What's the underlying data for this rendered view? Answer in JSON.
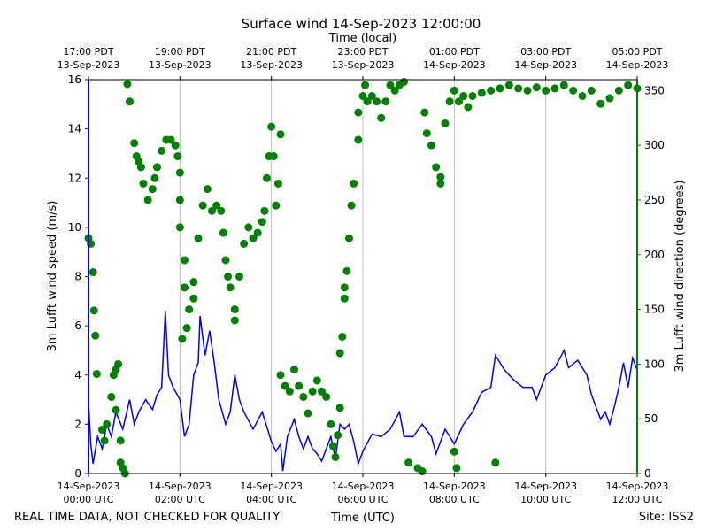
{
  "chart_data": {
    "type": "line",
    "title": "Surface wind 14-Sep-2023 12:00:00",
    "x2label": "Time (local)",
    "xlabel": "Time (UTC)",
    "ylabel": "3m Lufft wind speed (m/s)",
    "y2label": "3m Lufft wind direction (degrees)",
    "footer_left": "REAL TIME DATA, NOT CHECKED FOR QUALITY",
    "footer_right": "Site: ISS2",
    "grid": "x",
    "xlim": [
      0,
      12
    ],
    "xticks": [
      {
        "value": 0,
        "label": "14-Sep-2023\n00:00 UTC"
      },
      {
        "value": 2,
        "label": "14-Sep-2023\n02:00 UTC"
      },
      {
        "value": 4,
        "label": "14-Sep-2023\n04:00 UTC"
      },
      {
        "value": 6,
        "label": "14-Sep-2023\n06:00 UTC"
      },
      {
        "value": 8,
        "label": "14-Sep-2023\n08:00 UTC"
      },
      {
        "value": 10,
        "label": "14-Sep-2023\n10:00 UTC"
      },
      {
        "value": 12,
        "label": "14-Sep-2023\n12:00 UTC"
      }
    ],
    "x2ticks": [
      {
        "value": 0,
        "label": "17:00 PDT\n13-Sep-2023"
      },
      {
        "value": 2,
        "label": "19:00 PDT\n13-Sep-2023"
      },
      {
        "value": 4,
        "label": "21:00 PDT\n13-Sep-2023"
      },
      {
        "value": 6,
        "label": "23:00 PDT\n13-Sep-2023"
      },
      {
        "value": 8,
        "label": "01:00 PDT\n14-Sep-2023"
      },
      {
        "value": 10,
        "label": "03:00 PDT\n14-Sep-2023"
      },
      {
        "value": 12,
        "label": "05:00 PDT\n14-Sep-2023"
      }
    ],
    "ylim": [
      0,
      16
    ],
    "yticks": [
      0,
      2,
      4,
      6,
      8,
      10,
      12,
      14,
      16
    ],
    "y2lim": [
      0,
      360
    ],
    "y2ticks": [
      0,
      50,
      100,
      150,
      200,
      250,
      300,
      350
    ],
    "ycolor": "#0000ff",
    "y2color": "#008000",
    "series": [
      {
        "type": "line",
        "color": "#0000ff",
        "x": [
          0.0,
          0.05,
          0.1,
          0.2,
          0.3,
          0.4,
          0.5,
          0.6,
          0.75,
          0.9,
          1.0,
          1.1,
          1.25,
          1.4,
          1.5,
          1.6,
          1.68,
          1.75,
          1.85,
          2.0,
          2.1,
          2.2,
          2.3,
          2.4,
          2.44,
          2.55,
          2.65,
          2.75,
          2.85,
          3.0,
          3.1,
          3.2,
          3.3,
          3.4,
          3.6,
          3.8,
          4.0,
          4.1,
          4.2,
          4.25,
          4.35,
          4.5,
          4.6,
          4.7,
          4.8,
          4.9,
          5.0,
          5.1,
          5.3,
          5.4,
          5.5,
          5.6,
          5.7,
          5.8,
          5.9,
          6.0,
          6.2,
          6.4,
          6.6,
          6.8,
          6.9,
          7.1,
          7.3,
          7.5,
          7.6,
          7.8,
          8.0,
          8.2,
          8.4,
          8.6,
          8.8,
          8.9,
          9.1,
          9.3,
          9.5,
          9.7,
          9.8,
          10.0,
          10.2,
          10.4,
          10.5,
          10.7,
          10.9,
          11.0,
          11.1,
          11.2,
          11.3,
          11.4,
          11.5,
          11.6,
          11.7,
          11.8,
          11.9,
          12.0
        ],
        "values": [
          2.9,
          1.2,
          0.4,
          1.5,
          1.0,
          2.0,
          1.5,
          2.5,
          1.8,
          3.0,
          2.0,
          2.5,
          3.0,
          2.6,
          3.2,
          3.5,
          6.6,
          4.0,
          3.5,
          3.0,
          1.5,
          2.0,
          4.0,
          4.5,
          6.4,
          4.8,
          5.8,
          4.5,
          3.0,
          2.0,
          2.5,
          4.0,
          3.0,
          2.5,
          1.8,
          2.5,
          1.3,
          0.9,
          1.2,
          0.1,
          1.5,
          2.2,
          1.5,
          1.0,
          1.5,
          1.0,
          0.8,
          0.5,
          1.5,
          0.6,
          2.0,
          1.8,
          2.0,
          1.3,
          0.4,
          0.9,
          1.6,
          1.5,
          1.8,
          2.5,
          1.5,
          1.5,
          2.0,
          1.5,
          0.8,
          1.8,
          1.2,
          2.0,
          2.5,
          3.3,
          3.5,
          4.8,
          4.2,
          3.8,
          3.5,
          3.5,
          3.0,
          4.0,
          4.3,
          5.0,
          4.3,
          4.6,
          4.0,
          3.2,
          2.7,
          2.2,
          2.5,
          2.0,
          2.7,
          3.5,
          4.5,
          3.5,
          4.7,
          4.2
        ]
      },
      {
        "type": "scatter",
        "axis": "y2",
        "color": "#008000",
        "x": [
          0.0,
          0.05,
          0.1,
          0.12,
          0.15,
          0.18,
          0.3,
          0.35,
          0.4,
          0.5,
          0.55,
          0.6,
          0.6,
          0.65,
          0.7,
          0.7,
          0.75,
          0.8,
          0.85,
          0.9,
          1.0,
          1.05,
          1.1,
          1.15,
          1.2,
          1.3,
          1.4,
          1.45,
          1.5,
          1.6,
          1.7,
          1.8,
          1.9,
          1.95,
          2.0,
          2.0,
          2.0,
          2.05,
          2.1,
          2.1,
          2.15,
          2.2,
          2.3,
          2.3,
          2.4,
          2.5,
          2.6,
          2.7,
          2.8,
          2.9,
          2.95,
          3.0,
          3.05,
          3.1,
          3.2,
          3.2,
          3.3,
          3.4,
          3.5,
          3.6,
          3.7,
          3.8,
          3.85,
          3.9,
          3.95,
          4.0,
          4.05,
          4.1,
          4.15,
          4.2,
          4.2,
          4.3,
          4.4,
          4.5,
          4.6,
          4.7,
          4.8,
          4.9,
          5.0,
          5.1,
          5.2,
          5.3,
          5.35,
          5.4,
          5.45,
          5.5,
          5.5,
          5.55,
          5.6,
          5.6,
          5.65,
          5.7,
          5.75,
          5.8,
          5.9,
          5.9,
          6.0,
          6.05,
          6.1,
          6.2,
          6.3,
          6.4,
          6.5,
          6.6,
          6.7,
          6.8,
          6.9,
          7.0,
          7.2,
          7.3,
          7.35,
          7.4,
          7.5,
          7.6,
          7.7,
          7.7,
          7.8,
          7.9,
          8.0,
          8.0,
          8.05,
          8.1,
          8.2,
          8.3,
          8.4,
          8.6,
          8.8,
          8.9,
          9.0,
          9.2,
          9.4,
          9.6,
          9.8,
          10.0,
          10.2,
          10.4,
          10.6,
          10.8,
          11.0,
          11.2,
          11.4,
          11.6,
          11.8,
          12.0
        ],
        "values": [
          215,
          210,
          184,
          149,
          126,
          91,
          40,
          30,
          45,
          70,
          90,
          95,
          58,
          100,
          10,
          30,
          5,
          0,
          356,
          340,
          302,
          290,
          285,
          280,
          265,
          250,
          260,
          270,
          280,
          295,
          305,
          305,
          300,
          290,
          275,
          250,
          225,
          123,
          195,
          170,
          133,
          150,
          160,
          175,
          215,
          245,
          260,
          240,
          245,
          240,
          220,
          195,
          180,
          170,
          140,
          150,
          180,
          210,
          225,
          215,
          220,
          230,
          240,
          270,
          290,
          317,
          290,
          245,
          265,
          310,
          90,
          80,
          75,
          95,
          80,
          70,
          55,
          75,
          85,
          75,
          70,
          45,
          25,
          15,
          35,
          60,
          110,
          125,
          160,
          170,
          185,
          215,
          245,
          265,
          305,
          330,
          345,
          355,
          340,
          345,
          340,
          325,
          340,
          355,
          350,
          355,
          358,
          10,
          5,
          2,
          330,
          311,
          300,
          280,
          265,
          271,
          320,
          340,
          350,
          20,
          5,
          340,
          345,
          335,
          345,
          348,
          350,
          10,
          352,
          355,
          352,
          350,
          353,
          350,
          352,
          355,
          350,
          345,
          350,
          338,
          343,
          350,
          355,
          352
        ]
      }
    ]
  }
}
